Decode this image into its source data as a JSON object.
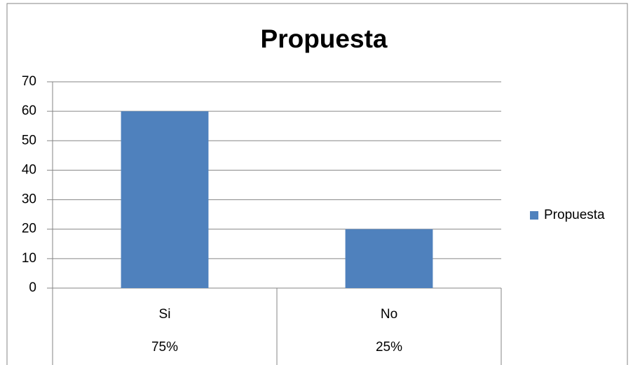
{
  "chart_data": {
    "type": "bar",
    "title": "Propuesta",
    "categories": [
      "Si",
      "No"
    ],
    "category_sublabels": [
      "75%",
      "25%"
    ],
    "series": [
      {
        "name": "Propuesta",
        "color": "#4f81bd",
        "values": [
          60,
          20
        ]
      }
    ],
    "ylim": [
      0,
      70
    ],
    "yticks": [
      0,
      10,
      20,
      30,
      40,
      50,
      60,
      70
    ],
    "grid": true,
    "legend": "right"
  }
}
